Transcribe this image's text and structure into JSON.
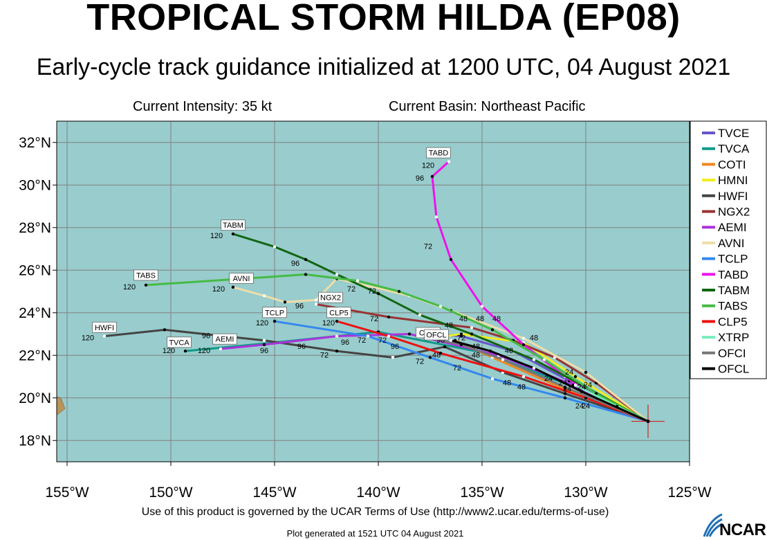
{
  "header": {
    "title": "TROPICAL STORM HILDA (EP08)",
    "subtitle": "Early-cycle track guidance initialized at 1200 UTC, 04 August 2021",
    "intensity": "Current Intensity: 35 kt",
    "basin": "Current Basin: Northeast Pacific"
  },
  "footer": {
    "terms": "Use of this product is governed by the UCAR Terms of Use (http://www2.ucar.edu/terms-of-use)",
    "generated": "Plot generated at 1521 UTC   04 August 2021",
    "logo_text": "NCAR"
  },
  "colors": {
    "ocean": "#99cccc",
    "land": "#b8945a",
    "grid": "#808080",
    "current_position": "#cc2222"
  },
  "chart_data": {
    "type": "map",
    "xlim": [
      -155.5,
      -125
    ],
    "ylim": [
      17,
      33
    ],
    "x_ticks": [
      {
        "v": -155,
        "label": "155°W"
      },
      {
        "v": -150,
        "label": "150°W"
      },
      {
        "v": -145,
        "label": "145°W"
      },
      {
        "v": -140,
        "label": "140°W"
      },
      {
        "v": -135,
        "label": "135°W"
      },
      {
        "v": -130,
        "label": "130°W"
      },
      {
        "v": -125,
        "label": "125°W"
      }
    ],
    "y_ticks": [
      {
        "v": 18,
        "label": "18°N"
      },
      {
        "v": 20,
        "label": "20°N"
      },
      {
        "v": 22,
        "label": "22°N"
      },
      {
        "v": 24,
        "label": "24°N"
      },
      {
        "v": 26,
        "label": "26°N"
      },
      {
        "v": 28,
        "label": "28°N"
      },
      {
        "v": 30,
        "label": "30°N"
      },
      {
        "v": 32,
        "label": "32°N"
      }
    ],
    "grid": true,
    "current_position": {
      "lon": -127.0,
      "lat": 18.9
    },
    "legend_position": "right",
    "series": [
      {
        "name": "TVCE",
        "color": "#6655cc",
        "lon": [
          -127.0,
          -130.8,
          -133.5,
          -136.0,
          -137.5
        ],
        "lat": [
          18.9,
          20.8,
          22.2,
          22.9,
          23.0
        ]
      },
      {
        "name": "TVCA",
        "color": "#119988",
        "lon": [
          -127.0,
          -130.8,
          -134.8,
          -140.0,
          -145.0,
          -149.3
        ],
        "lat": [
          18.9,
          20.6,
          22.1,
          23.1,
          22.6,
          22.2
        ],
        "labels": [
          {
            "text": "120",
            "lon": -150.1,
            "lat": 22.1
          }
        ],
        "box": {
          "text": "TVCA",
          "lon": -149.6,
          "lat": 22.6
        }
      },
      {
        "name": "COTI",
        "color": "#ee8822",
        "lon": [
          -127.0,
          -131.0,
          -134.5,
          -136.3
        ],
        "lat": [
          18.9,
          20.4,
          21.9,
          22.7
        ],
        "box": {
          "text": "COTI",
          "lon": -137.6,
          "lat": 23.05
        }
      },
      {
        "name": "HMNI",
        "color": "#eeee22",
        "lon": [
          -127.0,
          -130.5,
          -133.0,
          -136.0,
          -137.5
        ],
        "lat": [
          18.9,
          21.0,
          22.6,
          23.0,
          22.8
        ]
      },
      {
        "name": "HWFI",
        "color": "#444444",
        "lon": [
          -127.0,
          -131.0,
          -134.0,
          -136.8,
          -139.3,
          -142.0,
          -145.5,
          -150.3,
          -153.2
        ],
        "lat": [
          18.9,
          20.2,
          21.2,
          22.4,
          21.9,
          22.2,
          22.7,
          23.2,
          22.9
        ],
        "labels": [
          {
            "text": "96",
            "lon": -148.3,
            "lat": 22.8
          },
          {
            "text": "72",
            "lon": -142.6,
            "lat": 21.9
          },
          {
            "text": "120",
            "lon": -154.0,
            "lat": 22.7
          }
        ],
        "box": {
          "text": "HWFI",
          "lon": -153.2,
          "lat": 23.3
        }
      },
      {
        "name": "NGX2",
        "color": "#993333",
        "lon": [
          -127.0,
          -129.5,
          -131.5,
          -133.5,
          -135.5,
          -139.5,
          -143.0
        ],
        "lat": [
          18.9,
          20.7,
          21.9,
          22.7,
          23.3,
          23.8,
          24.4
        ],
        "labels": [
          {
            "text": "96",
            "lon": -143.8,
            "lat": 24.2
          },
          {
            "text": "72",
            "lon": -140.2,
            "lat": 23.6
          }
        ],
        "box": {
          "text": "NGX2",
          "lon": -142.3,
          "lat": 24.7
        }
      },
      {
        "name": "AEMI",
        "color": "#aa33dd",
        "lon": [
          -127.0,
          -130.6,
          -134.2,
          -138.5,
          -142.0,
          -145.5,
          -147.6
        ],
        "lat": [
          18.9,
          20.6,
          22.0,
          23.0,
          22.9,
          22.5,
          22.3
        ],
        "labels": [
          {
            "text": "120",
            "lon": -148.4,
            "lat": 22.1
          },
          {
            "text": "96",
            "lon": -145.5,
            "lat": 22.1
          },
          {
            "text": "96",
            "lon": -143.7,
            "lat": 22.3
          }
        ],
        "box": {
          "text": "AEMI",
          "lon": -147.4,
          "lat": 22.75
        }
      },
      {
        "name": "AVNI",
        "color": "#eeddaa",
        "lon": [
          -127.0,
          -130.0,
          -133.0,
          -136.5,
          -138.5,
          -142.0,
          -143.0,
          -144.5,
          -145.5,
          -147.0
        ],
        "lat": [
          18.9,
          21.2,
          22.8,
          24.1,
          24.8,
          25.6,
          24.6,
          24.5,
          24.8,
          25.2
        ],
        "labels": [
          {
            "text": "120",
            "lon": -147.7,
            "lat": 25.0
          },
          {
            "text": "96",
            "lon": -146.3,
            "lat": 25.6
          }
        ],
        "box": {
          "text": "AVNI",
          "lon": -146.6,
          "lat": 25.6
        }
      },
      {
        "name": "TCLP",
        "color": "#3388ee",
        "lon": [
          -127.0,
          -131.0,
          -134.5,
          -137.5,
          -140.5,
          -145.0
        ],
        "lat": [
          18.9,
          20.0,
          20.9,
          21.9,
          22.9,
          23.6
        ],
        "labels": [
          {
            "text": "120",
            "lon": -145.6,
            "lat": 23.4
          }
        ],
        "box": {
          "text": "TCLP",
          "lon": -145.0,
          "lat": 24.0
        }
      },
      {
        "name": "TABD",
        "color": "#ee11ee",
        "lon": [
          -127.0,
          -129.5,
          -131.0,
          -133.0,
          -135.0,
          -136.5,
          -137.2,
          -137.4,
          -136.6
        ],
        "lat": [
          18.9,
          20.0,
          21.0,
          22.5,
          24.3,
          26.5,
          28.5,
          30.4,
          31.1
        ],
        "labels": [
          {
            "text": "72",
            "lon": -137.6,
            "lat": 27.0
          },
          {
            "text": "96",
            "lon": -138.0,
            "lat": 30.2
          },
          {
            "text": "120",
            "lon": -137.6,
            "lat": 30.8
          }
        ],
        "box": {
          "text": "TABD",
          "lon": -137.1,
          "lat": 31.5
        }
      },
      {
        "name": "TABM",
        "color": "#116611",
        "lon": [
          -127.0,
          -130.0,
          -132.5,
          -135.5,
          -138.0,
          -140.0,
          -142.0,
          -143.5,
          -145.0,
          -147.0
        ],
        "lat": [
          18.9,
          20.5,
          21.8,
          23.0,
          23.9,
          24.9,
          25.8,
          26.5,
          27.1,
          27.7
        ],
        "labels": [
          {
            "text": "120",
            "lon": -147.8,
            "lat": 27.5
          },
          {
            "text": "96",
            "lon": -144.0,
            "lat": 26.2
          },
          {
            "text": "72",
            "lon": -141.3,
            "lat": 25.0
          },
          {
            "text": "72",
            "lon": -140.3,
            "lat": 24.9
          }
        ],
        "box": {
          "text": "TABM",
          "lon": -147.0,
          "lat": 28.1
        }
      },
      {
        "name": "TABS",
        "color": "#44bb44",
        "lon": [
          -127.0,
          -129.5,
          -132.0,
          -134.5,
          -137.0,
          -139.0,
          -141.0,
          -143.5,
          -146.5,
          -151.2
        ],
        "lat": [
          18.9,
          20.2,
          21.8,
          23.2,
          24.3,
          25.0,
          25.5,
          25.8,
          25.6,
          25.3
        ],
        "labels": [
          {
            "text": "120",
            "lon": -152.0,
            "lat": 25.1
          }
        ],
        "box": {
          "text": "TABS",
          "lon": -151.2,
          "lat": 25.75
        }
      },
      {
        "name": "CLP5",
        "color": "#ee1111",
        "lon": [
          -127.0,
          -130.0,
          -133.0,
          -137.0,
          -139.5,
          -142.0
        ],
        "lat": [
          18.9,
          20.0,
          21.0,
          22.1,
          22.9,
          23.6
        ],
        "labels": [
          {
            "text": "120",
            "lon": -142.4,
            "lat": 23.4
          },
          {
            "text": "96",
            "lon": -141.6,
            "lat": 22.5
          },
          {
            "text": "72",
            "lon": -140.8,
            "lat": 22.6
          },
          {
            "text": "72",
            "lon": -139.8,
            "lat": 22.6
          }
        ],
        "box": {
          "text": "CLP5",
          "lon": -141.9,
          "lat": 24.0
        }
      },
      {
        "name": "XTRP",
        "color": "#77eebb",
        "lon": [
          -127.0,
          -128.5,
          -130.5
        ],
        "lat": [
          18.9,
          19.6,
          20.6
        ]
      },
      {
        "name": "OFCI",
        "color": "#777777",
        "lon": [
          -127.0,
          -131.0,
          -134.0,
          -136.0,
          -137.5
        ],
        "lat": [
          18.9,
          20.5,
          21.8,
          22.5,
          22.8
        ]
      },
      {
        "name": "OFCL",
        "color": "#000000",
        "lon": [
          -127.0,
          -130.2,
          -132.5,
          -134.6,
          -136.5
        ],
        "lat": [
          18.9,
          20.3,
          21.4,
          22.2,
          22.7
        ],
        "labels": [
          {
            "text": "96",
            "lon": -137.0,
            "lat": 22.6
          },
          {
            "text": "48",
            "lon": -137.2,
            "lat": 21.9
          },
          {
            "text": "72",
            "lon": -138.0,
            "lat": 21.6
          },
          {
            "text": "96",
            "lon": -139.2,
            "lat": 22.3
          }
        ],
        "box": {
          "text": "OFCL",
          "lon": -137.2,
          "lat": 22.95
        }
      }
    ],
    "labels": [
      {
        "text": "48",
        "lon": -135.9,
        "lat": 23.6
      },
      {
        "text": "48",
        "lon": -135.1,
        "lat": 23.6
      },
      {
        "text": "48",
        "lon": -134.3,
        "lat": 23.6
      },
      {
        "text": "48",
        "lon": -136.6,
        "lat": 23.3
      },
      {
        "text": "72",
        "lon": -136.0,
        "lat": 22.7
      },
      {
        "text": "48",
        "lon": -135.3,
        "lat": 22.3
      },
      {
        "text": "48",
        "lon": -135.3,
        "lat": 21.9
      },
      {
        "text": "48",
        "lon": -133.7,
        "lat": 22.1
      },
      {
        "text": "48",
        "lon": -132.5,
        "lat": 22.7
      },
      {
        "text": "72",
        "lon": -136.2,
        "lat": 21.3
      },
      {
        "text": "48",
        "lon": -133.8,
        "lat": 20.6
      },
      {
        "text": "48",
        "lon": -133.1,
        "lat": 20.4
      },
      {
        "text": "24",
        "lon": -131.8,
        "lat": 20.8
      },
      {
        "text": "24",
        "lon": -130.8,
        "lat": 21.1
      },
      {
        "text": "24",
        "lon": -131.1,
        "lat": 20.6
      },
      {
        "text": "24",
        "lon": -130.9,
        "lat": 20.3
      },
      {
        "text": "24",
        "lon": -130.2,
        "lat": 20.4
      },
      {
        "text": "24",
        "lon": -129.9,
        "lat": 20.5
      },
      {
        "text": "24",
        "lon": -130.3,
        "lat": 19.5
      },
      {
        "text": "24",
        "lon": -130.0,
        "lat": 19.5
      }
    ],
    "legend": [
      "TVCE",
      "TVCA",
      "COTI",
      "HMNI",
      "HWFI",
      "NGX2",
      "AEMI",
      "AVNI",
      "TCLP",
      "TABD",
      "TABM",
      "TABS",
      "CLP5",
      "XTRP",
      "OFCI",
      "OFCL"
    ]
  }
}
